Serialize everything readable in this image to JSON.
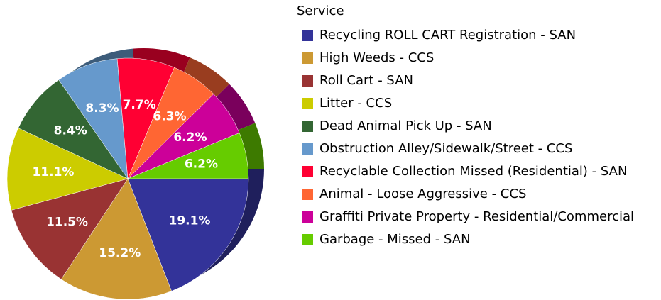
{
  "chart_data": {
    "type": "pie",
    "legend_title": "Service",
    "categories": [
      "Recycling ROLL CART Registration - SAN",
      "High Weeds - CCS",
      "Roll Cart - SAN",
      "Litter -  CCS",
      "Dead Animal Pick Up - SAN",
      "Obstruction Alley/Sidewalk/Street - CCS",
      "Recyclable Collection Missed (Residential) - SAN",
      "Animal - Loose Aggressive - CCS",
      "Graffiti Private Property - Residential/Commercial",
      "Garbage - Missed - SAN"
    ],
    "values": [
      19.1,
      15.2,
      11.5,
      11.1,
      8.4,
      8.3,
      7.7,
      6.3,
      6.2,
      6.2
    ],
    "value_labels": [
      "19.1%",
      "15.2%",
      "11.5%",
      "11.1%",
      "8.4%",
      "8.3%",
      "7.7%",
      "6.3%",
      "6.2%",
      "6.2%"
    ],
    "colors": [
      "#333399",
      "#cc9933",
      "#993333",
      "#cccc00",
      "#336633",
      "#6699cc",
      "#ff0033",
      "#ff6633",
      "#cc0099",
      "#66cc00"
    ],
    "legend": "right"
  }
}
